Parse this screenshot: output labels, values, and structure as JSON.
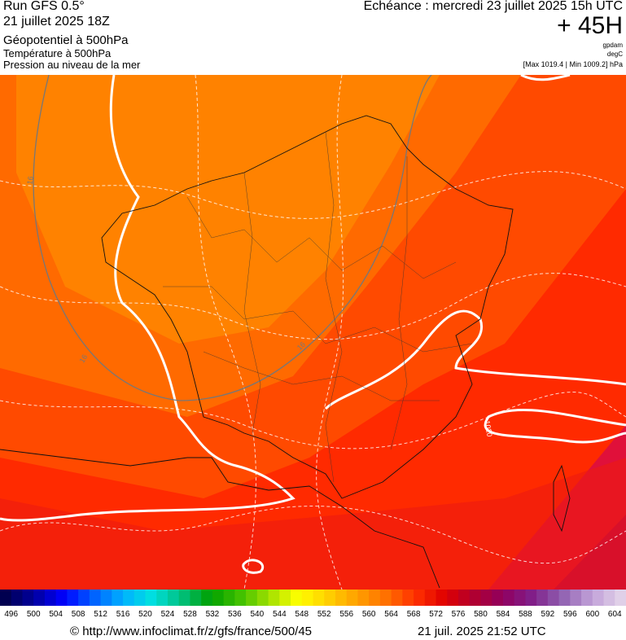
{
  "header": {
    "run": "Run GFS 0.5°",
    "run_date": "21 juillet 2025 18Z",
    "field_1": "Géopotentiel à 500hPa",
    "field_2": "Température à 500hPa",
    "field_3": "Pression au niveau de la mer",
    "valid_time": "Echéance : mercredi 23 juillet 2025 15h UTC",
    "lead_time": "+ 45H",
    "unit_1": "gpdam",
    "unit_2": "degC",
    "pressure_range": "[Max 1019.4 | Min 1009.2] hPa"
  },
  "map": {
    "contour_labels": [
      "16",
      "16",
      "16",
      "1020"
    ]
  },
  "colorbar": {
    "labels": [
      496,
      500,
      504,
      508,
      512,
      516,
      520,
      524,
      528,
      532,
      536,
      540,
      544,
      548,
      552,
      556,
      560,
      564,
      568,
      572,
      576,
      580,
      584,
      588,
      592,
      596,
      600,
      604
    ]
  },
  "footer": {
    "source": "© http://www.infoclimat.fr/z/gfs/france/500/45",
    "generated": "21 juil. 2025 21:52 UTC"
  }
}
